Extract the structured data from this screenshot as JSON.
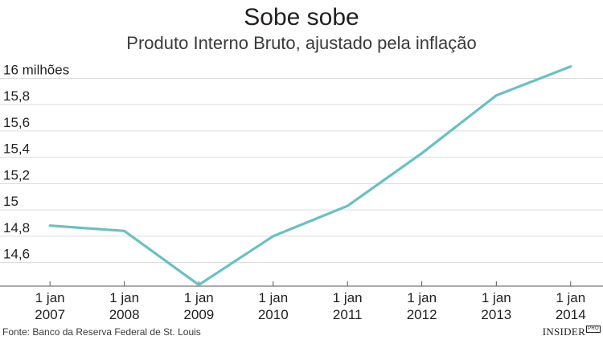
{
  "chart_data": {
    "type": "line",
    "title": "Sobe sobe",
    "subtitle": "Produto Interno Bruto, ajustado pela inflação",
    "source": "Fonte: Banco da Reserva Federal de St. Louis",
    "brand": "INSIDER",
    "brand_badge": "PRO",
    "ylim": [
      14.42,
      16.18
    ],
    "yticks": [
      {
        "value": 14.6,
        "label": "14,6"
      },
      {
        "value": 14.8,
        "label": "14,8"
      },
      {
        "value": 15.0,
        "label": "15"
      },
      {
        "value": 15.2,
        "label": "15,2"
      },
      {
        "value": 15.4,
        "label": "15,4"
      },
      {
        "value": 15.6,
        "label": "15,6"
      },
      {
        "value": 15.8,
        "label": "15,8"
      },
      {
        "value": 16.0,
        "label": "16 milhões"
      }
    ],
    "xticks": [
      {
        "date": "2007-01-01",
        "line1": "1 jan",
        "line2": "2007"
      },
      {
        "date": "2008-01-01",
        "line1": "1 jan",
        "line2": "2008"
      },
      {
        "date": "2009-01-01",
        "line1": "1 jan",
        "line2": "2009"
      },
      {
        "date": "2010-01-01",
        "line1": "1 jan",
        "line2": "2010"
      },
      {
        "date": "2011-01-01",
        "line1": "1 jan",
        "line2": "2011"
      },
      {
        "date": "2012-01-01",
        "line1": "1 jan",
        "line2": "2012"
      },
      {
        "date": "2013-01-01",
        "line1": "1 jan",
        "line2": "2013"
      },
      {
        "date": "2014-01-01",
        "line1": "1 jan",
        "line2": "2014"
      }
    ],
    "xlim": [
      "2006-06-01",
      "2014-06-01"
    ],
    "series": [
      {
        "color": "#6cbfc3",
        "points": [
          {
            "x": "2007-01-01",
            "y": 14.88
          },
          {
            "x": "2008-01-01",
            "y": 14.84
          },
          {
            "x": "2009-01-01",
            "y": 14.43
          },
          {
            "x": "2010-01-01",
            "y": 14.8
          },
          {
            "x": "2011-01-01",
            "y": 15.03
          },
          {
            "x": "2012-01-01",
            "y": 15.43
          },
          {
            "x": "2013-01-01",
            "y": 15.87
          },
          {
            "x": "2014-01-01",
            "y": 16.09
          }
        ]
      }
    ],
    "grid": true
  }
}
